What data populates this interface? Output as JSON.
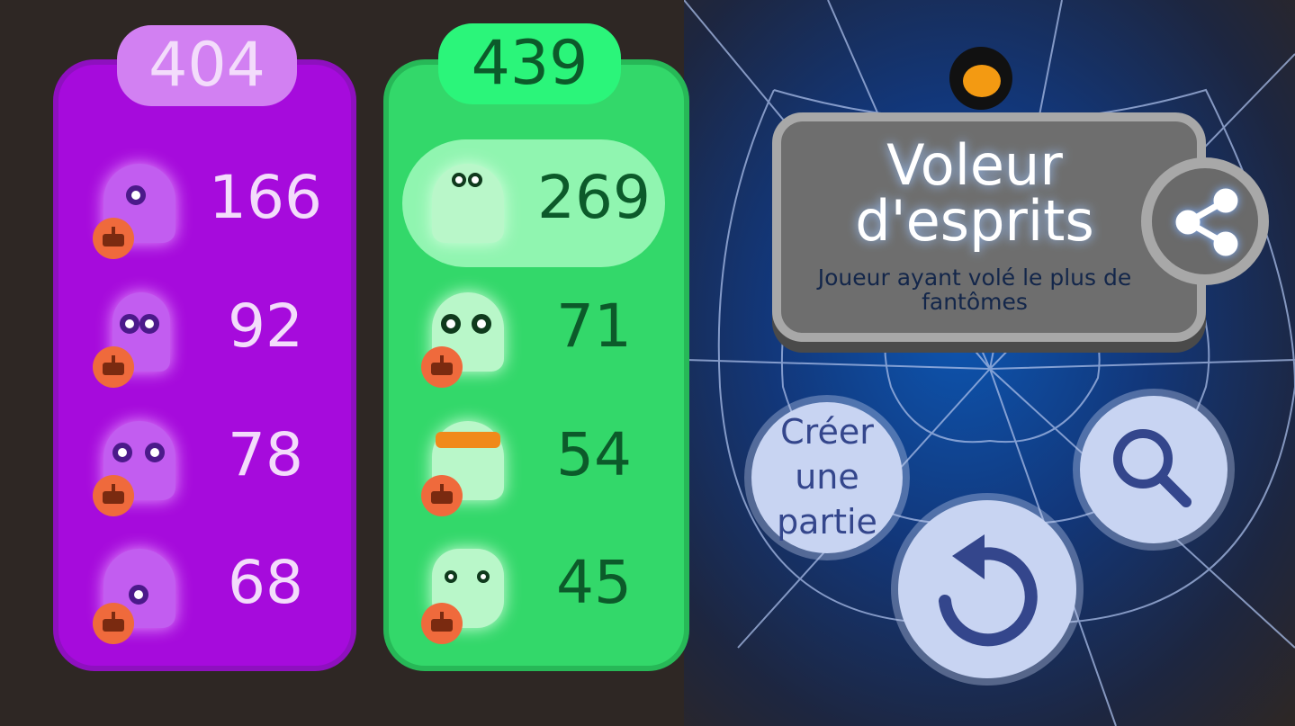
{
  "teams": [
    {
      "name": "purple",
      "color": "#a60bdc",
      "total": "404",
      "players": [
        {
          "ghost": "cyclops-ghost",
          "score": "166",
          "bot": true
        },
        {
          "ghost": "antenna-ghost",
          "score": "92",
          "bot": true
        },
        {
          "ghost": "grin-ghost",
          "score": "78",
          "bot": true
        },
        {
          "ghost": "hair-ghost",
          "score": "68",
          "bot": true
        }
      ]
    },
    {
      "name": "green",
      "color": "#33d86a",
      "total": "439",
      "players": [
        {
          "ghost": "blob-ghost",
          "score": "269",
          "bot": false,
          "highlighted": true
        },
        {
          "ghost": "panda-ghost",
          "score": "71",
          "bot": true
        },
        {
          "ghost": "sunglasses-ghost",
          "score": "54",
          "bot": true
        },
        {
          "ghost": "cat-ghost",
          "score": "45",
          "bot": true
        }
      ]
    }
  ],
  "award": {
    "title": "Voleur d'esprits",
    "subtitle": "Joueur ayant volé le plus de fantômes",
    "icon": "spider-icon"
  },
  "buttons": {
    "share": "share-icon",
    "create": "Créer une partie",
    "search": "search-icon",
    "replay": "replay-icon"
  }
}
